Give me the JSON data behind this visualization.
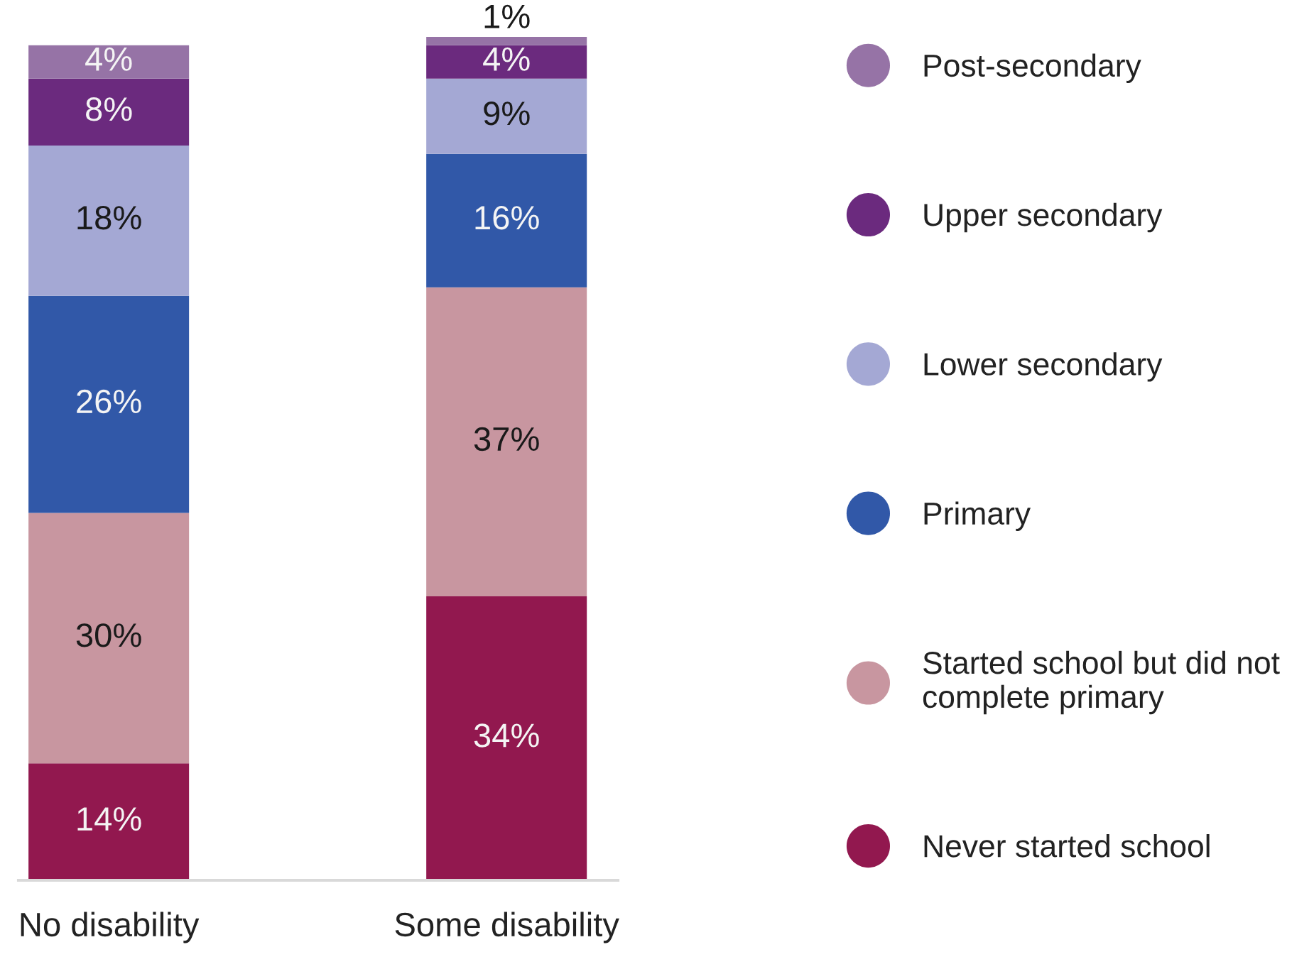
{
  "chart_data": {
    "type": "bar",
    "stacked": true,
    "categories": [
      "No disability",
      "Some disability"
    ],
    "series": [
      {
        "name": "Never started school",
        "color": "#92184f",
        "values": [
          14,
          34
        ],
        "value_labels": [
          "14%",
          "34%"
        ]
      },
      {
        "name": "Started school but did not\ncomplete primary",
        "color": "#c896a0",
        "values": [
          30,
          37
        ],
        "value_labels": [
          "30%",
          "37%"
        ]
      },
      {
        "name": "Primary",
        "color": "#3158a8",
        "values": [
          26,
          16
        ],
        "value_labels": [
          "26%",
          "16%"
        ]
      },
      {
        "name": "Lower secondary",
        "color": "#a4a8d4",
        "values": [
          18,
          9
        ],
        "value_labels": [
          "18%",
          "9%"
        ]
      },
      {
        "name": "Upper secondary",
        "color": "#6b2a7e",
        "values": [
          8,
          4
        ],
        "value_labels": [
          "8%",
          "4%"
        ]
      },
      {
        "name": "Post-secondary",
        "color": "#9673a6",
        "values": [
          4,
          1
        ],
        "value_labels": [
          "4%",
          "1%"
        ]
      }
    ],
    "legend": "right"
  }
}
